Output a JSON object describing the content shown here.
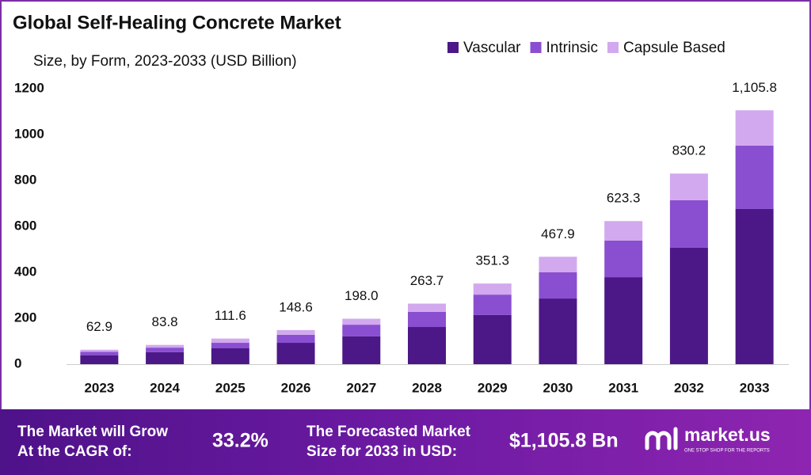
{
  "chart_data": {
    "type": "stacked_bar",
    "title": "Global Self-Healing Concrete Market",
    "subtitle": "Size, by Form, 2023-2033 (USD Billion)",
    "categories": [
      "2023",
      "2024",
      "2025",
      "2026",
      "2027",
      "2028",
      "2029",
      "2030",
      "2031",
      "2032",
      "2033"
    ],
    "series": [
      {
        "name": "Vascular",
        "color": "#4c1787",
        "values": [
          38,
          52,
          69,
          93,
          121,
          162,
          214,
          286,
          379,
          507,
          676
        ]
      },
      {
        "name": "Intrinsic",
        "color": "#8a4fd0",
        "values": [
          16,
          20,
          24,
          35,
          51,
          66,
          89,
          114,
          159,
          207,
          276
        ]
      },
      {
        "name": "Capsule Based",
        "color": "#d2a9ee",
        "values": [
          8.9,
          11.8,
          18.6,
          20.6,
          26,
          35.7,
          48.3,
          67.9,
          85.3,
          116.2,
          153.8
        ]
      }
    ],
    "totals": {
      "values": [
        62.9,
        83.8,
        111.6,
        148.6,
        198.0,
        263.7,
        351.3,
        467.9,
        623.3,
        830.2,
        1105.8
      ],
      "value_labels": [
        "62.9",
        "83.8",
        "111.6",
        "148.6",
        "198.0",
        "263.7",
        "351.3",
        "467.9",
        "623.3",
        "830.2",
        "1,105.8"
      ]
    },
    "ylim": [
      0,
      1200
    ],
    "yticks": [
      0,
      200,
      400,
      600,
      800,
      1000,
      1200
    ],
    "grid": false,
    "legend": "top-right"
  },
  "footer": {
    "cagr_text_1": "The Market will Grow",
    "cagr_text_2": "At the CAGR of:",
    "cagr": "33.2%",
    "forecast_text_1": "The Forecasted Market",
    "forecast_text_2": "Size for 2033 in USD:",
    "forecast": "$1,105.8 Bn",
    "brand": "market.us",
    "tagline": "ONE STOP SHOP FOR THE REPORTS"
  }
}
